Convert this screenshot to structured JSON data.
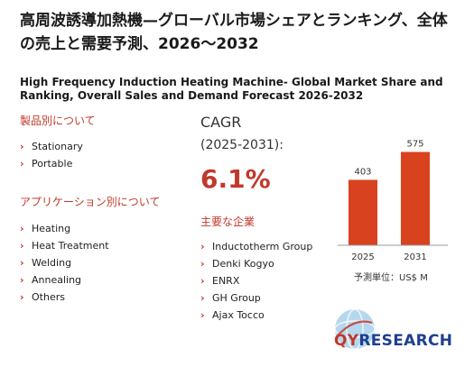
{
  "title_ja": "高周波誘導加熱機—グローバル市場シェアとランキング、全体の売上と需要予測、2026～2032",
  "title_en": "High Frequency Induction Heating Machine- Global Market Share and Ranking, Overall Sales and Demand Forecast 2026-2032",
  "product_section": {
    "heading": "製品別について",
    "items": [
      "Stationary",
      "Portable"
    ]
  },
  "application_section": {
    "heading": "アプリケーション別について",
    "items": [
      "Heating",
      "Heat Treatment",
      "Welding",
      "Annealing",
      "Others"
    ]
  },
  "cagr": {
    "label": "CAGR",
    "period": "(2025-2031):",
    "value": "6.1%"
  },
  "companies_section": {
    "heading": "主要な企業",
    "items": [
      "Inductotherm Group",
      "Denki Kogyo",
      "ENRX",
      "GH Group",
      "Ajax Tocco"
    ]
  },
  "chart_data": {
    "type": "bar",
    "categories": [
      "2025",
      "2031"
    ],
    "values": [
      403,
      575
    ],
    "title": "",
    "xlabel": "",
    "ylabel": "",
    "ylim": [
      0,
      600
    ],
    "bar_color": "#d9421e",
    "grid": false
  },
  "unit_note": "予測単位：US$ M",
  "logo": {
    "name": "QYResearch",
    "icon": "globe-icon"
  },
  "colors": {
    "accent": "#c0392b",
    "bar": "#d9421e",
    "brand_blue": "#1f3f8f"
  }
}
